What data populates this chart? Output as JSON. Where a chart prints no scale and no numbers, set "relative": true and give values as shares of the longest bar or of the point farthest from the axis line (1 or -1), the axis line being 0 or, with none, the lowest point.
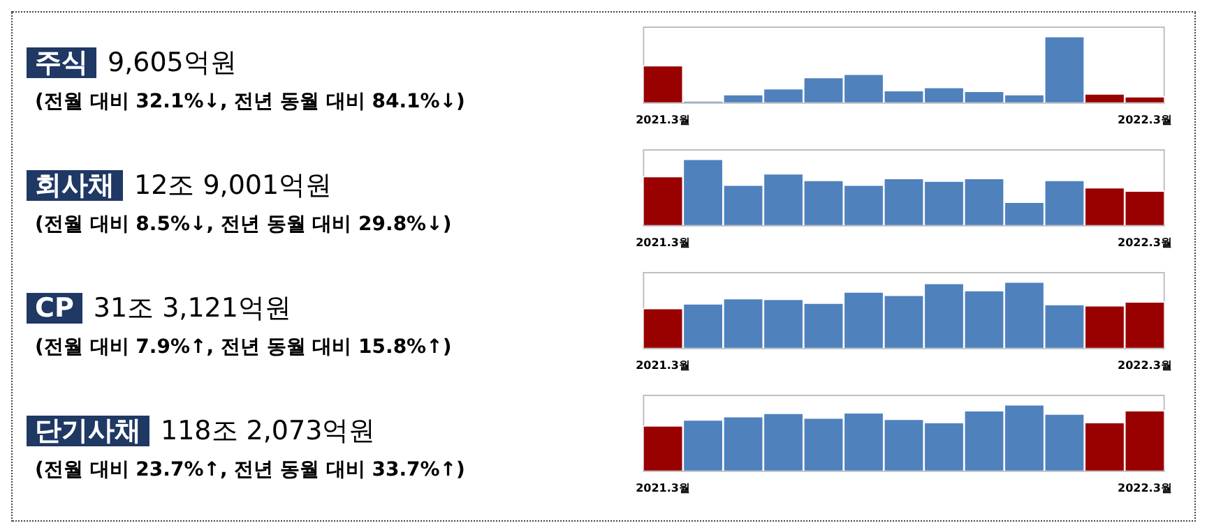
{
  "chart_data": [
    {
      "type": "other",
      "title": "주식",
      "subtitle": "9,605억원",
      "annotations": [
        "(전월 대비 32.1%↓, 전년 동월 대비 84.1%↓)"
      ]
    },
    {
      "type": "bar",
      "relative": true,
      "categories": [
        "2021.3월",
        null,
        null,
        null,
        null,
        null,
        null,
        null,
        null,
        null,
        null,
        null,
        "2022.3월"
      ],
      "values": [
        0.56,
        0.01,
        0.12,
        0.21,
        0.38,
        0.43,
        0.18,
        0.23,
        0.17,
        0.12,
        1,
        0.13,
        0.09
      ],
      "colors": [
        "#990000",
        "#4f81bd",
        "#4f81bd",
        "#4f81bd",
        "#4f81bd",
        "#4f81bd",
        "#4f81bd",
        "#4f81bd",
        "#4f81bd",
        "#4f81bd",
        "#4f81bd",
        "#990000",
        "#990000"
      ]
    },
    {
      "type": "other",
      "title": "회사채",
      "subtitle": "12조 9,001억원",
      "annotations": [
        "(전월 대비 8.5%↓, 전년 동월 대비 29.8%↓)"
      ]
    },
    {
      "type": "bar",
      "relative": true,
      "categories": [
        "2021.3월",
        null,
        null,
        null,
        null,
        null,
        null,
        null,
        null,
        null,
        null,
        null,
        "2022.3월"
      ],
      "values": [
        0.74,
        1,
        0.61,
        0.78,
        0.68,
        0.61,
        0.71,
        0.67,
        0.71,
        0.35,
        0.68,
        0.57,
        0.52
      ],
      "colors": [
        "#990000",
        "#4f81bd",
        "#4f81bd",
        "#4f81bd",
        "#4f81bd",
        "#4f81bd",
        "#4f81bd",
        "#4f81bd",
        "#4f81bd",
        "#4f81bd",
        "#4f81bd",
        "#990000",
        "#990000"
      ]
    },
    {
      "type": "other",
      "title": "CP",
      "subtitle": "31조 3,121억원",
      "annotations": [
        "(전월 대비 7.9%↑, 전년 동월 대비 15.8%↑)"
      ]
    },
    {
      "type": "bar",
      "relative": true,
      "categories": [
        "2021.3월",
        null,
        null,
        null,
        null,
        null,
        null,
        null,
        null,
        null,
        null,
        null,
        "2022.3월"
      ],
      "values": [
        0.6,
        0.67,
        0.75,
        0.74,
        0.68,
        0.85,
        0.8,
        0.98,
        0.87,
        1,
        0.66,
        0.64,
        0.7
      ],
      "colors": [
        "#990000",
        "#4f81bd",
        "#4f81bd",
        "#4f81bd",
        "#4f81bd",
        "#4f81bd",
        "#4f81bd",
        "#4f81bd",
        "#4f81bd",
        "#4f81bd",
        "#4f81bd",
        "#990000",
        "#990000"
      ]
    },
    {
      "type": "other",
      "title": "단기사채",
      "subtitle": "118조 2,073억원",
      "annotations": [
        "(전월 대비 23.7%↑, 전년 동월 대비 33.7%↑)"
      ]
    },
    {
      "type": "bar",
      "relative": true,
      "categories": [
        "2021.3월",
        null,
        null,
        null,
        null,
        null,
        null,
        null,
        null,
        null,
        null,
        null,
        "2022.3월"
      ],
      "values": [
        0.68,
        0.77,
        0.82,
        0.87,
        0.8,
        0.88,
        0.78,
        0.73,
        0.91,
        1,
        0.86,
        0.73,
        0.91
      ],
      "colors": [
        "#990000",
        "#4f81bd",
        "#4f81bd",
        "#4f81bd",
        "#4f81bd",
        "#4f81bd",
        "#4f81bd",
        "#4f81bd",
        "#4f81bd",
        "#4f81bd",
        "#4f81bd",
        "#990000",
        "#990000"
      ]
    }
  ]
}
